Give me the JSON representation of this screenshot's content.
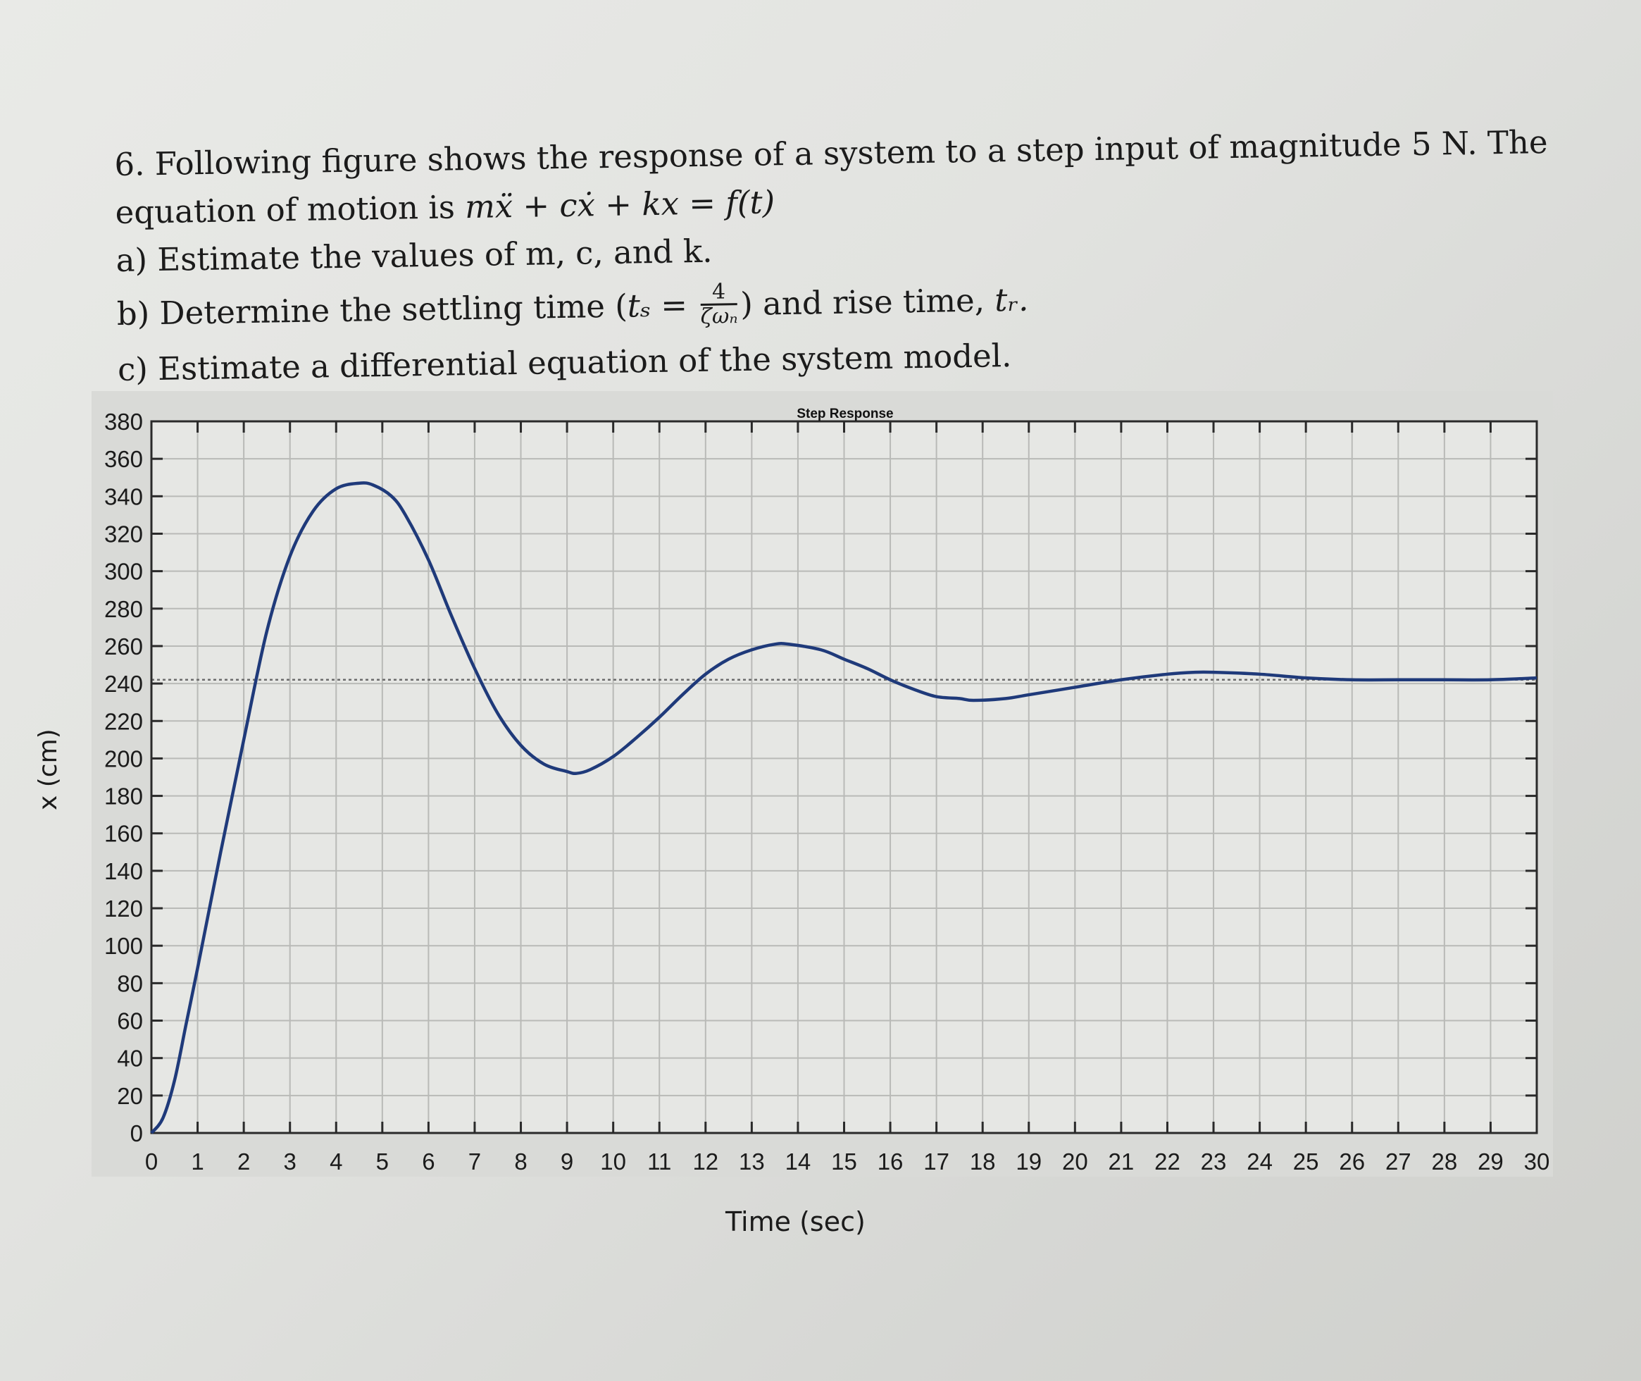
{
  "question": {
    "line1": "6. Following figure shows the response of a system to a step input of magnitude 5 N. The",
    "line2_text": "equation of motion is ",
    "line2_math": "mẍ + cẋ + kx = f(t)",
    "part_a": "a) Estimate the values of m, c, and k.",
    "part_b_pre": "b) Determine the settling time (",
    "part_b_ts": "tₛ = ",
    "part_b_num": "4",
    "part_b_den": "ζωₙ",
    "part_b_post": ") and rise time, ",
    "part_b_tr": "tᵣ.",
    "part_c": "c) Estimate a differential equation of the system model."
  },
  "chart_data": {
    "type": "line",
    "title": "Step Response",
    "xlabel": "Time (sec)",
    "ylabel": "x (cm)",
    "xlim": [
      0,
      30
    ],
    "ylim": [
      0,
      380
    ],
    "x_ticks": [
      0,
      1,
      2,
      3,
      4,
      5,
      6,
      7,
      8,
      9,
      10,
      11,
      12,
      13,
      14,
      15,
      16,
      17,
      18,
      19,
      20,
      21,
      22,
      23,
      24,
      25,
      26,
      27,
      28,
      29,
      30
    ],
    "y_ticks": [
      0,
      20,
      40,
      60,
      80,
      100,
      120,
      140,
      160,
      180,
      200,
      220,
      240,
      260,
      280,
      300,
      320,
      340,
      360,
      380
    ],
    "grid": true,
    "legend": null,
    "steady_state_line": 242,
    "series": [
      {
        "name": "Step Response",
        "color": "#1f3a7a",
        "x": [
          0,
          0.25,
          0.5,
          0.75,
          1,
          1.5,
          2,
          2.5,
          3,
          3.5,
          4,
          4.5,
          4.8,
          5.2,
          5.5,
          6,
          6.5,
          7,
          7.5,
          8,
          8.5,
          9,
          9.2,
          9.5,
          10,
          10.5,
          11,
          11.5,
          12,
          12.5,
          13,
          13.5,
          13.8,
          14.5,
          15,
          15.5,
          16,
          16.5,
          17,
          17.5,
          17.8,
          18.5,
          19,
          20,
          21,
          22,
          22.6,
          23,
          24,
          25,
          26,
          27,
          28,
          29,
          30
        ],
        "y": [
          0,
          8,
          28,
          58,
          88,
          150,
          210,
          268,
          308,
          332,
          344,
          347,
          346,
          340,
          330,
          306,
          276,
          248,
          224,
          207,
          197,
          193,
          192,
          194,
          201,
          211,
          222,
          234,
          245,
          253,
          258,
          261,
          261,
          258,
          253,
          248,
          242,
          237,
          233,
          232,
          231,
          232,
          234,
          238,
          242,
          245,
          246,
          246,
          245,
          243,
          242,
          242,
          242,
          242,
          243
        ]
      }
    ]
  }
}
